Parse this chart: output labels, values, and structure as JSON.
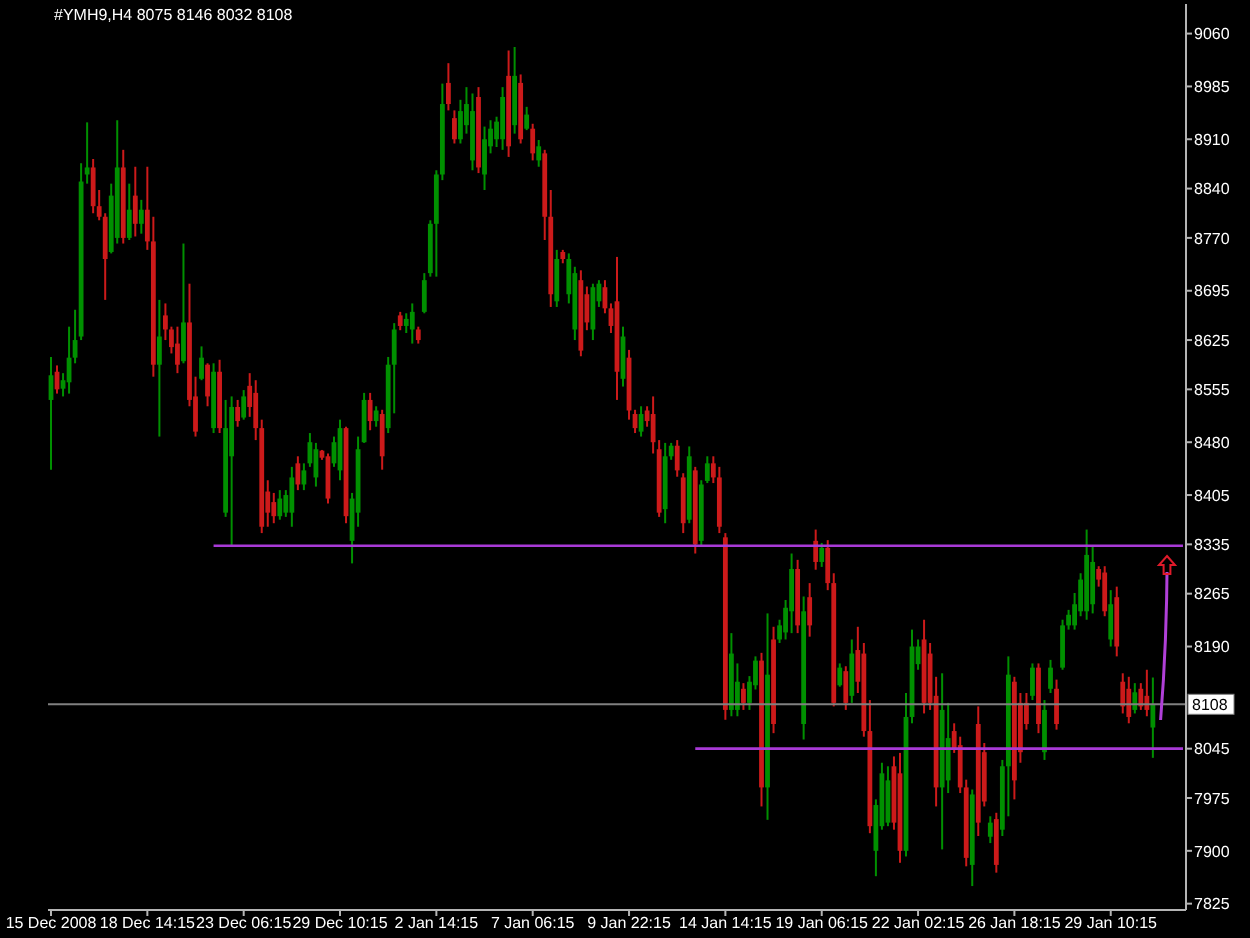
{
  "chart_data": {
    "type": "candlestick",
    "title": "#YMH9,H4 8075 8146 8032 8108",
    "categories": [
      "15 Dec 2008",
      null,
      null,
      null,
      null,
      null,
      null,
      null,
      null,
      null,
      null,
      null,
      null,
      null,
      null,
      null,
      "18 Dec 14:15",
      null,
      null,
      null,
      null,
      null,
      null,
      null,
      null,
      null,
      null,
      null,
      null,
      null,
      null,
      null,
      "23 Dec 06:15",
      null,
      null,
      null,
      null,
      null,
      null,
      null,
      null,
      null,
      null,
      null,
      null,
      null,
      null,
      null,
      "29 Dec 10:15",
      null,
      null,
      null,
      null,
      null,
      null,
      null,
      null,
      null,
      null,
      null,
      null,
      null,
      null,
      null,
      "2 Jan 14:15",
      null,
      null,
      null,
      null,
      null,
      null,
      null,
      null,
      null,
      null,
      null,
      null,
      null,
      null,
      null,
      "7 Jan 06:15",
      null,
      null,
      null,
      null,
      null,
      null,
      null,
      null,
      null,
      null,
      null,
      null,
      null,
      null,
      null,
      "9 Jan 22:15",
      null,
      null,
      null,
      null,
      null,
      null,
      null,
      null,
      null,
      null,
      null,
      null,
      null,
      null,
      null,
      "14 Jan 14:15",
      null,
      null,
      null,
      null,
      null,
      null,
      null,
      null,
      null,
      null,
      null,
      null,
      null,
      null,
      null,
      "19 Jan 06:15",
      null,
      null,
      null,
      null,
      null,
      null,
      null,
      null,
      null,
      null,
      null,
      null,
      null,
      null,
      null,
      "22 Jan 02:15",
      null,
      null,
      null,
      null,
      null,
      null,
      null,
      null,
      null,
      null,
      null,
      null,
      null,
      null,
      null,
      "26 Jan 18:15",
      null,
      null,
      null,
      null,
      null,
      null,
      null,
      null,
      null,
      null,
      null,
      null,
      null,
      null,
      null,
      "29 Jan 10:15",
      null,
      null,
      null,
      null,
      null,
      null,
      null,
      null,
      null,
      null,
      null,
      null
    ],
    "ohlc": [
      [
        8540,
        8601,
        8441,
        8575
      ],
      [
        8580,
        8589,
        8549,
        8555
      ],
      [
        8556,
        8578,
        8545,
        8568
      ],
      [
        8565,
        8644,
        8549,
        8600
      ],
      [
        8600,
        8668,
        8592,
        8625
      ],
      [
        8630,
        8876,
        8625,
        8850
      ],
      [
        8860,
        8934,
        8847,
        8870
      ],
      [
        8870,
        8882,
        8805,
        8815
      ],
      [
        8815,
        8838,
        8795,
        8800
      ],
      [
        8800,
        8805,
        8682,
        8740
      ],
      [
        8750,
        8847,
        8748,
        8830
      ],
      [
        8770,
        8937,
        8762,
        8870
      ],
      [
        8870,
        8895,
        8762,
        8770
      ],
      [
        8770,
        8847,
        8767,
        8810
      ],
      [
        8830,
        8871,
        8772,
        8790
      ],
      [
        8790,
        8824,
        8776,
        8810
      ],
      [
        8810,
        8871,
        8753,
        8765
      ],
      [
        8765,
        8800,
        8573,
        8590
      ],
      [
        8590,
        8682,
        8488,
        8630
      ],
      [
        8660,
        8677,
        8625,
        8640
      ],
      [
        8640,
        8644,
        8606,
        8615
      ],
      [
        8620,
        8644,
        8578,
        8590
      ],
      [
        8595,
        8762,
        8592,
        8650
      ],
      [
        8650,
        8705,
        8531,
        8540
      ],
      [
        8545,
        8573,
        8488,
        8495
      ],
      [
        8570,
        8616,
        8568,
        8600
      ],
      [
        8590,
        8592,
        8531,
        8545
      ],
      [
        8500,
        8592,
        8493,
        8580
      ],
      [
        8580,
        8597,
        8493,
        8500
      ],
      [
        8380,
        8540,
        8374,
        8500
      ],
      [
        8460,
        8545,
        8332,
        8530
      ],
      [
        8530,
        8540,
        8502,
        8510
      ],
      [
        8515,
        8554,
        8512,
        8545
      ],
      [
        8560,
        8578,
        8516,
        8530
      ],
      [
        8550,
        8568,
        8483,
        8500
      ],
      [
        8500,
        8512,
        8351,
        8360
      ],
      [
        8410,
        8426,
        8360,
        8380
      ],
      [
        8395,
        8408,
        8365,
        8375
      ],
      [
        8375,
        8412,
        8370,
        8400
      ],
      [
        8380,
        8412,
        8374,
        8405
      ],
      [
        8380,
        8445,
        8360,
        8430
      ],
      [
        8450,
        8460,
        8412,
        8420
      ],
      [
        8420,
        8450,
        8412,
        8440
      ],
      [
        8450,
        8493,
        8445,
        8480
      ],
      [
        8430,
        8479,
        8417,
        8470
      ],
      [
        8468,
        8469,
        8455,
        8458
      ],
      [
        8460,
        8464,
        8393,
        8400
      ],
      [
        8450,
        8488,
        8445,
        8480
      ],
      [
        8440,
        8512,
        8426,
        8500
      ],
      [
        8500,
        8502,
        8365,
        8375
      ],
      [
        8340,
        8408,
        8308,
        8400
      ],
      [
        8380,
        8488,
        8360,
        8470
      ],
      [
        8480,
        8550,
        8479,
        8540
      ],
      [
        8540,
        8550,
        8497,
        8510
      ],
      [
        8510,
        8531,
        8502,
        8525
      ],
      [
        8520,
        8526,
        8441,
        8460
      ],
      [
        8500,
        8601,
        8493,
        8590
      ],
      [
        8590,
        8649,
        8521,
        8640
      ],
      [
        8660,
        8665,
        8639,
        8645
      ],
      [
        8645,
        8663,
        8635,
        8655
      ],
      [
        8640,
        8677,
        8620,
        8665
      ],
      [
        8640,
        8644,
        8620,
        8625
      ],
      [
        8665,
        8720,
        8663,
        8710
      ],
      [
        8720,
        8795,
        8715,
        8790
      ],
      [
        8790,
        8866,
        8715,
        8860
      ],
      [
        8860,
        8989,
        8852,
        8960
      ],
      [
        8990,
        9018,
        8951,
        8960
      ],
      [
        8940,
        8951,
        8904,
        8910
      ],
      [
        8910,
        8966,
        8904,
        8950
      ],
      [
        8930,
        8984,
        8918,
        8960
      ],
      [
        8880,
        8975,
        8866,
        8950
      ],
      [
        8970,
        8984,
        8862,
        8870
      ],
      [
        8860,
        8928,
        8838,
        8910
      ],
      [
        8900,
        8937,
        8890,
        8925
      ],
      [
        8910,
        8942,
        8899,
        8935
      ],
      [
        8910,
        8984,
        8895,
        8970
      ],
      [
        9000,
        9036,
        8885,
        8900
      ],
      [
        8930,
        9041,
        8918,
        9000
      ],
      [
        8990,
        9002,
        8904,
        8910
      ],
      [
        8925,
        8956,
        8923,
        8945
      ],
      [
        8925,
        8932,
        8880,
        8890
      ],
      [
        8880,
        8909,
        8871,
        8900
      ],
      [
        8890,
        8895,
        8767,
        8800
      ],
      [
        8800,
        8838,
        8672,
        8690
      ],
      [
        8680,
        8753,
        8672,
        8740
      ],
      [
        8750,
        8753,
        8734,
        8740
      ],
      [
        8690,
        8748,
        8677,
        8740
      ],
      [
        8640,
        8729,
        8625,
        8720
      ],
      [
        8710,
        8724,
        8602,
        8610
      ],
      [
        8690,
        8701,
        8639,
        8650
      ],
      [
        8640,
        8705,
        8625,
        8700
      ],
      [
        8680,
        8710,
        8672,
        8705
      ],
      [
        8700,
        8710,
        8663,
        8670
      ],
      [
        8670,
        8677,
        8635,
        8645
      ],
      [
        8680,
        8743,
        8540,
        8580
      ],
      [
        8570,
        8644,
        8559,
        8630
      ],
      [
        8600,
        8611,
        8512,
        8525
      ],
      [
        8520,
        8526,
        8493,
        8500
      ],
      [
        8495,
        8531,
        8488,
        8520
      ],
      [
        8525,
        8531,
        8502,
        8510
      ],
      [
        8520,
        8545,
        8464,
        8480
      ],
      [
        8470,
        8483,
        8374,
        8380
      ],
      [
        8385,
        8479,
        8365,
        8460
      ],
      [
        8460,
        8479,
        8455,
        8475
      ],
      [
        8475,
        8483,
        8431,
        8440
      ],
      [
        8430,
        8436,
        8351,
        8365
      ],
      [
        8370,
        8474,
        8365,
        8460
      ],
      [
        8440,
        8445,
        8322,
        8335
      ],
      [
        8340,
        8426,
        8332,
        8420
      ],
      [
        8425,
        8460,
        8422,
        8450
      ],
      [
        8450,
        8460,
        8422,
        8430
      ],
      [
        8430,
        8445,
        8351,
        8360
      ],
      [
        8345,
        8351,
        8086,
        8100
      ],
      [
        8100,
        8209,
        8091,
        8180
      ],
      [
        8100,
        8166,
        8091,
        8140
      ],
      [
        8130,
        8138,
        8100,
        8110
      ],
      [
        8110,
        8148,
        8100,
        8140
      ],
      [
        8135,
        8176,
        8129,
        8170
      ],
      [
        8170,
        8181,
        7963,
        7990
      ],
      [
        7990,
        8237,
        7944,
        8150
      ],
      [
        8200,
        8218,
        8067,
        8080
      ],
      [
        8200,
        8228,
        8195,
        8220
      ],
      [
        8210,
        8256,
        8200,
        8245
      ],
      [
        8240,
        8322,
        8209,
        8300
      ],
      [
        8300,
        8313,
        8209,
        8220
      ],
      [
        8080,
        8261,
        8058,
        8240
      ],
      [
        8260,
        8280,
        8204,
        8220
      ],
      [
        8340,
        8356,
        8299,
        8310
      ],
      [
        8310,
        8337,
        8303,
        8330
      ],
      [
        8330,
        8341,
        8270,
        8280
      ],
      [
        8280,
        8294,
        8105,
        8110
      ],
      [
        8135,
        8166,
        8133,
        8160
      ],
      [
        8155,
        8162,
        8100,
        8110
      ],
      [
        8120,
        8200,
        8110,
        8180
      ],
      [
        8185,
        8218,
        8124,
        8140
      ],
      [
        8180,
        8195,
        8062,
        8070
      ],
      [
        8070,
        8114,
        7925,
        7935
      ],
      [
        7900,
        7973,
        7864,
        7965
      ],
      [
        7935,
        8025,
        7930,
        8010
      ],
      [
        7940,
        8020,
        7935,
        8000
      ],
      [
        8020,
        8034,
        7930,
        7940
      ],
      [
        8010,
        8039,
        7883,
        7900
      ],
      [
        7900,
        8124,
        7892,
        8090
      ],
      [
        8090,
        8214,
        8081,
        8190
      ],
      [
        8165,
        8200,
        8157,
        8190
      ],
      [
        8200,
        8228,
        8095,
        8110
      ],
      [
        8180,
        8195,
        8100,
        8110
      ],
      [
        8120,
        8147,
        7963,
        7990
      ],
      [
        7990,
        8152,
        7902,
        8100
      ],
      [
        8000,
        8110,
        7982,
        8060
      ],
      [
        8070,
        8081,
        8039,
        8045
      ],
      [
        8050,
        8062,
        7982,
        7990
      ],
      [
        7990,
        8001,
        7878,
        7890
      ],
      [
        7880,
        7987,
        7850,
        7980
      ],
      [
        8080,
        8105,
        7921,
        7940
      ],
      [
        8040,
        8053,
        7963,
        7970
      ],
      [
        7920,
        7949,
        7911,
        7940
      ],
      [
        7945,
        7954,
        7869,
        7880
      ],
      [
        7930,
        8029,
        7921,
        8020
      ],
      [
        8020,
        8176,
        7949,
        8150
      ],
      [
        8140,
        8147,
        7973,
        8000
      ],
      [
        8110,
        8124,
        8025,
        8040
      ],
      [
        8110,
        8124,
        8072,
        8080
      ],
      [
        8120,
        8166,
        8114,
        8160
      ],
      [
        8160,
        8166,
        8067,
        8080
      ],
      [
        8040,
        8114,
        8029,
        8100
      ],
      [
        8130,
        8171,
        8124,
        8160
      ],
      [
        8130,
        8143,
        8072,
        8080
      ],
      [
        8160,
        8228,
        8157,
        8220
      ],
      [
        8220,
        8242,
        8214,
        8235
      ],
      [
        8220,
        8266,
        8214,
        8250
      ],
      [
        8240,
        8294,
        8233,
        8285
      ],
      [
        8240,
        8356,
        8228,
        8320
      ],
      [
        8250,
        8332,
        8237,
        8310
      ],
      [
        8300,
        8304,
        8275,
        8285
      ],
      [
        8295,
        8304,
        8233,
        8240
      ],
      [
        8200,
        8270,
        8190,
        8250
      ],
      [
        8260,
        8275,
        8176,
        8190
      ],
      [
        8140,
        8152,
        8095,
        8105
      ],
      [
        8130,
        8147,
        8081,
        8090
      ],
      [
        8100,
        8138,
        8095,
        8125
      ],
      [
        8130,
        8138,
        8100,
        8105
      ],
      [
        8120,
        8157,
        8091,
        8100
      ],
      [
        8075,
        8146,
        8032,
        8108
      ],
      null,
      null,
      null,
      null,
      null
    ],
    "colors": [
      "#009000",
      "#cc1a1a",
      "#009000",
      "#009000",
      "#009000",
      "#009000",
      "#009000",
      "#cc1a1a",
      "#cc1a1a",
      "#cc1a1a",
      "#009000",
      "#009000",
      "#cc1a1a",
      "#009000",
      "#cc1a1a",
      "#009000",
      "#cc1a1a",
      "#cc1a1a",
      "#009000",
      "#cc1a1a",
      "#cc1a1a",
      "#cc1a1a",
      "#009000",
      "#cc1a1a",
      "#cc1a1a",
      "#009000",
      "#cc1a1a",
      "#009000",
      "#cc1a1a",
      "#009000",
      "#009000",
      "#cc1a1a",
      "#009000",
      "#cc1a1a",
      "#cc1a1a",
      "#cc1a1a",
      "#cc1a1a",
      "#cc1a1a",
      "#009000",
      "#009000",
      "#009000",
      "#cc1a1a",
      "#009000",
      "#009000",
      "#009000",
      "#cc1a1a",
      "#cc1a1a",
      "#009000",
      "#009000",
      "#cc1a1a",
      "#009000",
      "#009000",
      "#009000",
      "#cc1a1a",
      "#009000",
      "#cc1a1a",
      "#009000",
      "#009000",
      "#cc1a1a",
      "#009000",
      "#009000",
      "#cc1a1a",
      "#009000",
      "#009000",
      "#009000",
      "#009000",
      "#cc1a1a",
      "#cc1a1a",
      "#009000",
      "#009000",
      "#009000",
      "#cc1a1a",
      "#009000",
      "#009000",
      "#009000",
      "#009000",
      "#cc1a1a",
      "#009000",
      "#cc1a1a",
      "#009000",
      "#cc1a1a",
      "#009000",
      "#cc1a1a",
      "#cc1a1a",
      "#009000",
      "#cc1a1a",
      "#009000",
      "#009000",
      "#cc1a1a",
      "#cc1a1a",
      "#009000",
      "#009000",
      "#cc1a1a",
      "#cc1a1a",
      "#cc1a1a",
      "#009000",
      "#cc1a1a",
      "#cc1a1a",
      "#009000",
      "#cc1a1a",
      "#cc1a1a",
      "#cc1a1a",
      "#009000",
      "#009000",
      "#cc1a1a",
      "#cc1a1a",
      "#009000",
      "#cc1a1a",
      "#009000",
      "#009000",
      "#cc1a1a",
      "#cc1a1a",
      "#cc1a1a",
      "#009000",
      "#009000",
      "#cc1a1a",
      "#009000",
      "#009000",
      "#cc1a1a",
      "#009000",
      "#cc1a1a",
      "#009000",
      "#009000",
      "#009000",
      "#cc1a1a",
      "#009000",
      "#cc1a1a",
      "#cc1a1a",
      "#009000",
      "#cc1a1a",
      "#cc1a1a",
      "#009000",
      "#cc1a1a",
      "#009000",
      "#cc1a1a",
      "#cc1a1a",
      "#cc1a1a",
      "#009000",
      "#009000",
      "#009000",
      "#cc1a1a",
      "#cc1a1a",
      "#009000",
      "#009000",
      "#009000",
      "#cc1a1a",
      "#cc1a1a",
      "#cc1a1a",
      "#009000",
      "#009000",
      "#cc1a1a",
      "#cc1a1a",
      "#cc1a1a",
      "#009000",
      "#cc1a1a",
      "#cc1a1a",
      "#009000",
      "#cc1a1a",
      "#009000",
      "#009000",
      "#cc1a1a",
      "#cc1a1a",
      "#cc1a1a",
      "#009000",
      "#cc1a1a",
      "#009000",
      "#009000",
      "#cc1a1a",
      "#009000",
      "#009000",
      "#009000",
      "#009000",
      "#009000",
      "#009000",
      "#cc1a1a",
      "#cc1a1a",
      "#009000",
      "#cc1a1a",
      "#cc1a1a",
      "#cc1a1a",
      "#009000",
      "#cc1a1a",
      "#cc1a1a",
      "#009000",
      null,
      null,
      null,
      null,
      null
    ],
    "series": [
      {
        "type": "line",
        "color": "#a83ad6",
        "values": [
          null,
          null,
          null,
          null,
          null,
          null,
          null,
          null,
          null,
          null,
          null,
          null,
          null,
          null,
          null,
          null,
          null,
          null,
          null,
          null,
          null,
          null,
          null,
          null,
          null,
          null,
          null,
          8333,
          8333,
          8333,
          8333,
          8333,
          8333,
          8333,
          8333,
          8333,
          8333,
          8333,
          8333,
          8333,
          8333,
          8333,
          8333,
          8333,
          8333,
          8333,
          8333,
          8333,
          8333,
          8333,
          8333,
          8333,
          8333,
          8333,
          8333,
          8333,
          8333,
          8333,
          8333,
          8333,
          8333,
          8333,
          8333,
          8333,
          8333,
          8333,
          8333,
          8333,
          8333,
          8333,
          8333,
          8333,
          8333,
          8333,
          8333,
          8333,
          8333,
          8333,
          8333,
          8333,
          8333,
          8333,
          8333,
          8333,
          8333,
          8333,
          8333,
          8333,
          8333,
          8333,
          8333,
          8333,
          8333,
          8333,
          8333,
          8333,
          8333,
          8333,
          8333,
          8333,
          8333,
          8333,
          8333,
          8333,
          8333,
          8333,
          8333,
          8333,
          8333,
          8333,
          8333,
          8333,
          8333,
          8333,
          8333,
          8333,
          8333,
          8333,
          8333,
          8333,
          8333,
          8333,
          8333,
          8333,
          8333,
          8333,
          8333,
          8333,
          8333,
          8333,
          8333,
          8333,
          8333,
          8333,
          8333,
          8333,
          8333,
          8333,
          8333,
          8333,
          8333,
          8333,
          8333,
          8333,
          8333,
          8333,
          8333,
          8333,
          8333,
          8333,
          8333,
          8333,
          8333,
          8333,
          8333,
          8333,
          8333,
          8333,
          8333,
          8333,
          8333,
          8333,
          8333,
          8333,
          8333,
          8333,
          8333,
          8333,
          8333,
          8333,
          8333,
          8333,
          8333,
          8333,
          8333,
          8333,
          8333,
          8333,
          8333,
          8333,
          8333,
          8333,
          8333,
          8333,
          8333,
          8333,
          8333,
          8333,
          8333
        ]
      },
      {
        "type": "line",
        "color": "#a83ad6",
        "values": [
          null,
          null,
          null,
          null,
          null,
          null,
          null,
          null,
          null,
          null,
          null,
          null,
          null,
          null,
          null,
          null,
          null,
          null,
          null,
          null,
          null,
          null,
          null,
          null,
          null,
          null,
          null,
          null,
          null,
          null,
          null,
          null,
          null,
          null,
          null,
          null,
          null,
          null,
          null,
          null,
          null,
          null,
          null,
          null,
          null,
          null,
          null,
          null,
          null,
          null,
          null,
          null,
          null,
          null,
          null,
          null,
          null,
          null,
          null,
          null,
          null,
          null,
          null,
          null,
          null,
          null,
          null,
          null,
          null,
          null,
          null,
          null,
          null,
          null,
          null,
          null,
          null,
          null,
          null,
          null,
          null,
          null,
          null,
          null,
          null,
          null,
          null,
          null,
          null,
          null,
          null,
          null,
          null,
          null,
          null,
          null,
          null,
          null,
          null,
          null,
          null,
          null,
          null,
          null,
          null,
          null,
          null,
          8045,
          8045,
          8045,
          8045,
          8045,
          8045,
          8045,
          8045,
          8045,
          8045,
          8045,
          8045,
          8045,
          8045,
          8045,
          8045,
          8045,
          8045,
          8045,
          8045,
          8045,
          8045,
          8045,
          8045,
          8045,
          8045,
          8045,
          8045,
          8045,
          8045,
          8045,
          8045,
          8045,
          8045,
          8045,
          8045,
          8045,
          8045,
          8045,
          8045,
          8045,
          8045,
          8045,
          8045,
          8045,
          8045,
          8045,
          8045,
          8045,
          8045,
          8045,
          8045,
          8045,
          8045,
          8045,
          8045,
          8045,
          8045,
          8045,
          8045,
          8045,
          8045,
          8045,
          8045,
          8045,
          8045,
          8045,
          8045,
          8045,
          8045,
          8045,
          8045,
          8045,
          8045,
          8045,
          8045,
          8045,
          8045,
          8045,
          8045,
          8045,
          8045
        ]
      }
    ],
    "ylim": [
      7816,
      9102
    ],
    "yticks": [
      7825,
      7900,
      7975,
      8045,
      8190,
      8265,
      8335,
      8405,
      8480,
      8555,
      8625,
      8695,
      8770,
      8840,
      8910,
      8985,
      9060
    ],
    "ref_lines": [
      {
        "axis": "y",
        "value": 8108,
        "label": "8108",
        "color": "#808080"
      }
    ]
  }
}
